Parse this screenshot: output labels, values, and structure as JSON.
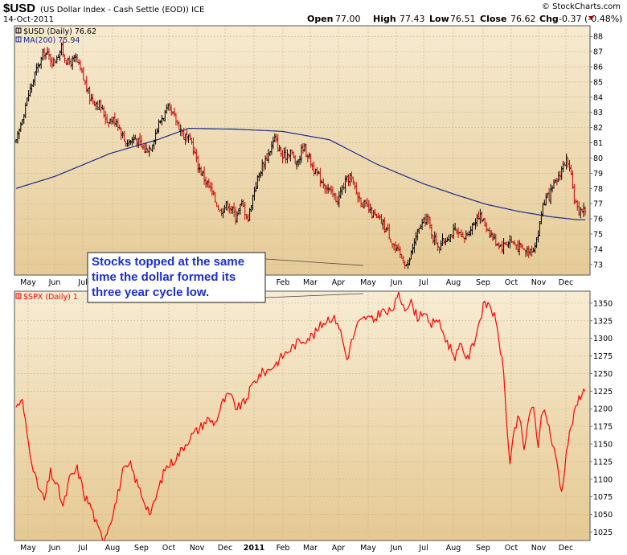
{
  "header": {
    "symbol": "$USD",
    "description": "(US Dollar Index - Cash Settle (EOD)) ICE",
    "date": "14-Oct-2011",
    "watermark": "© StockCharts.com",
    "open_label": "Open",
    "open": "77.00",
    "high_label": "High",
    "high": "77.43",
    "low_label": "Low",
    "low": "76.51",
    "close_label": "Close",
    "close": "76.62",
    "chg_label": "Chg",
    "chg": "-0.37 (-0.48%)"
  },
  "annotation": {
    "lines": [
      "Stocks topped at the same",
      "time the dollar formed its",
      "three year cycle low."
    ]
  },
  "colors": {
    "panel_bg_top": "#f6ead0",
    "panel_bg_bottom": "#e6cb97",
    "usd_bars": "#000000",
    "usd_down": "#cc0000",
    "ma": "#1a2a8c",
    "spx": "#ff0000",
    "annotation_text": "#1a2fd0"
  },
  "chart_data": [
    {
      "type": "ohlc",
      "name": "$USD",
      "legend": [
        {
          "label": "$USD (Daily) 76.62",
          "color": "#000000"
        },
        {
          "label": "MA(200) 75.94",
          "color": "#1a2a8c"
        }
      ],
      "ylim": [
        72.3,
        88.7
      ],
      "yticks": [
        73,
        74,
        75,
        76,
        77,
        78,
        79,
        80,
        81,
        82,
        83,
        84,
        85,
        86,
        87,
        88
      ],
      "xticks": [
        "May",
        "Jun",
        "Jul",
        "Aug",
        "Sep",
        "Oct",
        "Nov",
        "Dec",
        "2011",
        "Feb",
        "Mar",
        "Apr",
        "May",
        "Jun",
        "Jul",
        "Aug",
        "Sep",
        "Oct",
        "Nov",
        "Dec"
      ],
      "close_keypoints": [
        [
          0,
          81.0
        ],
        [
          6,
          83.5
        ],
        [
          12,
          85.5
        ],
        [
          18,
          87.0
        ],
        [
          24,
          86.3
        ],
        [
          29,
          87.2
        ],
        [
          33,
          86.2
        ],
        [
          38,
          86.5
        ],
        [
          42,
          85.5
        ],
        [
          47,
          84.0
        ],
        [
          53,
          83.5
        ],
        [
          58,
          82.5
        ],
        [
          64,
          82.5
        ],
        [
          70,
          81.0
        ],
        [
          76,
          81.3
        ],
        [
          82,
          80.5
        ],
        [
          86,
          80.8
        ],
        [
          92,
          82.5
        ],
        [
          97,
          83.2
        ],
        [
          102,
          82.5
        ],
        [
          107,
          81.5
        ],
        [
          112,
          81.0
        ],
        [
          116,
          79.5
        ],
        [
          121,
          78.5
        ],
        [
          126,
          77.5
        ],
        [
          130,
          76.5
        ],
        [
          135,
          77.0
        ],
        [
          140,
          76.2
        ],
        [
          144,
          77.0
        ],
        [
          148,
          76.0
        ],
        [
          152,
          78.0
        ],
        [
          157,
          79.5
        ],
        [
          161,
          80.3
        ],
        [
          165,
          81.3
        ],
        [
          170,
          80.0
        ],
        [
          175,
          80.5
        ],
        [
          179,
          79.5
        ],
        [
          183,
          80.8
        ],
        [
          187,
          80.0
        ],
        [
          191,
          79.0
        ],
        [
          195,
          78.5
        ],
        [
          200,
          77.8
        ],
        [
          205,
          77.2
        ],
        [
          209,
          78.2
        ],
        [
          213,
          78.8
        ],
        [
          218,
          77.5
        ],
        [
          223,
          76.8
        ],
        [
          228,
          76.2
        ],
        [
          233,
          75.8
        ],
        [
          237,
          75.2
        ],
        [
          242,
          74.0
        ],
        [
          247,
          73.3
        ],
        [
          250,
          72.9
        ],
        [
          254,
          74.5
        ],
        [
          258,
          75.5
        ],
        [
          262,
          76.1
        ],
        [
          266,
          74.8
        ],
        [
          270,
          74.2
        ],
        [
          275,
          74.8
        ],
        [
          280,
          75.2
        ],
        [
          285,
          74.6
        ],
        [
          290,
          75.4
        ],
        [
          295,
          76.3
        ],
        [
          300,
          75.5
        ],
        [
          305,
          74.6
        ],
        [
          310,
          74.2
        ],
        [
          315,
          74.6
        ],
        [
          320,
          74.2
        ],
        [
          325,
          73.9
        ],
        [
          330,
          74.1
        ],
        [
          333,
          75.0
        ],
        [
          336,
          77.0
        ],
        [
          340,
          77.5
        ],
        [
          344,
          78.3
        ],
        [
          348,
          79.3
        ],
        [
          351,
          79.9
        ],
        [
          354,
          78.7
        ],
        [
          356,
          77.3
        ],
        [
          358,
          76.6
        ]
      ],
      "ma_keypoints": [
        [
          0,
          78.0
        ],
        [
          25,
          78.8
        ],
        [
          60,
          80.3
        ],
        [
          90,
          81.2
        ],
        [
          110,
          81.95
        ],
        [
          140,
          81.9
        ],
        [
          170,
          81.75
        ],
        [
          200,
          81.2
        ],
        [
          230,
          79.6
        ],
        [
          260,
          78.3
        ],
        [
          280,
          77.6
        ],
        [
          300,
          76.95
        ],
        [
          320,
          76.5
        ],
        [
          340,
          76.15
        ],
        [
          358,
          75.94
        ]
      ],
      "x_span": 363
    },
    {
      "type": "line",
      "name": "$SPX",
      "legend": [
        {
          "label": "$SPX (Daily) 1",
          "color": "#ff0000"
        }
      ],
      "ylim": [
        1013,
        1367
      ],
      "yticks": [
        1025,
        1050,
        1075,
        1100,
        1125,
        1150,
        1175,
        1200,
        1225,
        1250,
        1275,
        1300,
        1325,
        1350
      ],
      "xticks": [
        "May",
        "Jun",
        "Jul",
        "Aug",
        "Sep",
        "Oct",
        "Nov",
        "Dec",
        "2011",
        "Feb",
        "Mar",
        "Apr",
        "May",
        "Jun",
        "Jul",
        "Aug",
        "Sep",
        "Oct",
        "Nov",
        "Dec"
      ],
      "close_keypoints": [
        [
          0,
          1205
        ],
        [
          4,
          1210
        ],
        [
          8,
          1150
        ],
        [
          13,
          1095
        ],
        [
          18,
          1070
        ],
        [
          22,
          1110
        ],
        [
          27,
          1085
        ],
        [
          30,
          1060
        ],
        [
          34,
          1100
        ],
        [
          39,
          1115
        ],
        [
          44,
          1075
        ],
        [
          48,
          1060
        ],
        [
          52,
          1030
        ],
        [
          56,
          1015
        ],
        [
          60,
          1040
        ],
        [
          64,
          1070
        ],
        [
          68,
          1110
        ],
        [
          73,
          1120
        ],
        [
          77,
          1095
        ],
        [
          82,
          1068
        ],
        [
          86,
          1050
        ],
        [
          90,
          1080
        ],
        [
          95,
          1115
        ],
        [
          100,
          1125
        ],
        [
          105,
          1140
        ],
        [
          111,
          1160
        ],
        [
          116,
          1170
        ],
        [
          122,
          1185
        ],
        [
          127,
          1180
        ],
        [
          132,
          1210
        ],
        [
          136,
          1220
        ],
        [
          141,
          1200
        ],
        [
          146,
          1210
        ],
        [
          151,
          1235
        ],
        [
          156,
          1250
        ],
        [
          161,
          1255
        ],
        [
          166,
          1265
        ],
        [
          170,
          1275
        ],
        [
          175,
          1285
        ],
        [
          180,
          1295
        ],
        [
          185,
          1300
        ],
        [
          190,
          1305
        ],
        [
          195,
          1320
        ],
        [
          200,
          1330
        ],
        [
          205,
          1325
        ],
        [
          208,
          1300
        ],
        [
          211,
          1270
        ],
        [
          214,
          1295
        ],
        [
          218,
          1320
        ],
        [
          223,
          1330
        ],
        [
          228,
          1325
        ],
        [
          233,
          1340
        ],
        [
          237,
          1335
        ],
        [
          241,
          1345
        ],
        [
          244,
          1360
        ],
        [
          248,
          1345
        ],
        [
          252,
          1350
        ],
        [
          256,
          1330
        ],
        [
          260,
          1340
        ],
        [
          264,
          1315
        ],
        [
          268,
          1330
        ],
        [
          272,
          1310
        ],
        [
          276,
          1290
        ],
        [
          280,
          1275
        ],
        [
          284,
          1290
        ],
        [
          288,
          1270
        ],
        [
          292,
          1295
        ],
        [
          295,
          1320
        ],
        [
          298,
          1345
        ],
        [
          302,
          1350
        ],
        [
          305,
          1330
        ],
        [
          308,
          1300
        ],
        [
          311,
          1250
        ],
        [
          313,
          1180
        ],
        [
          315,
          1120
        ],
        [
          318,
          1170
        ],
        [
          321,
          1190
        ],
        [
          324,
          1140
        ],
        [
          327,
          1190
        ],
        [
          330,
          1200
        ],
        [
          333,
          1150
        ],
        [
          336,
          1200
        ],
        [
          339,
          1185
        ],
        [
          342,
          1150
        ],
        [
          345,
          1125
        ],
        [
          348,
          1080
        ],
        [
          351,
          1140
        ],
        [
          354,
          1175
        ],
        [
          357,
          1200
        ],
        [
          359,
          1215
        ],
        [
          361,
          1225
        ]
      ],
      "x_span": 363
    }
  ]
}
